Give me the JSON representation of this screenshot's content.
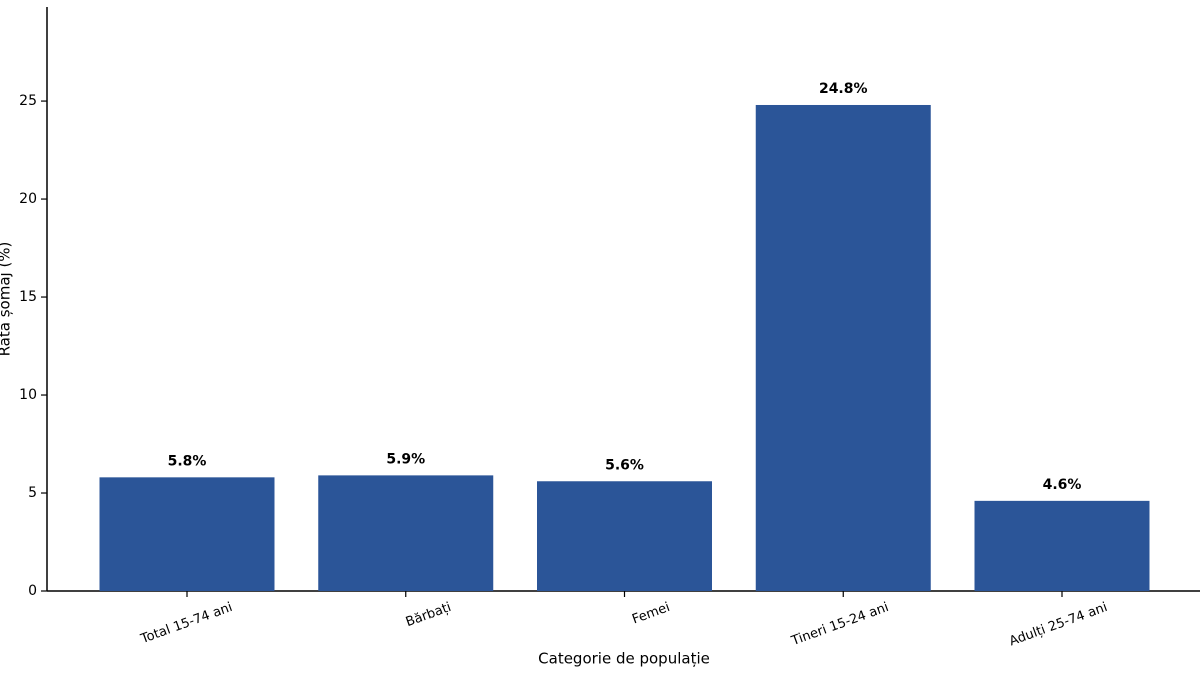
{
  "chart_data": {
    "type": "bar",
    "x_label": "Categorie de populație",
    "y_label": "Rata șomaj (%)",
    "categories": [
      "Total 15-74 ani",
      "Bărbați",
      "Femei",
      "Tineri 15-24 ani",
      "Adulți 25-74 ani"
    ],
    "values": [
      5.8,
      5.9,
      5.6,
      24.8,
      4.6
    ],
    "value_labels": [
      "5.8%",
      "5.9%",
      "5.6%",
      "24.8%",
      "4.6%"
    ],
    "color": "#2b5598",
    "ylim": [
      0,
      29.8
    ],
    "yticks": [
      0,
      5,
      10,
      15,
      20,
      25
    ],
    "grid": false
  }
}
